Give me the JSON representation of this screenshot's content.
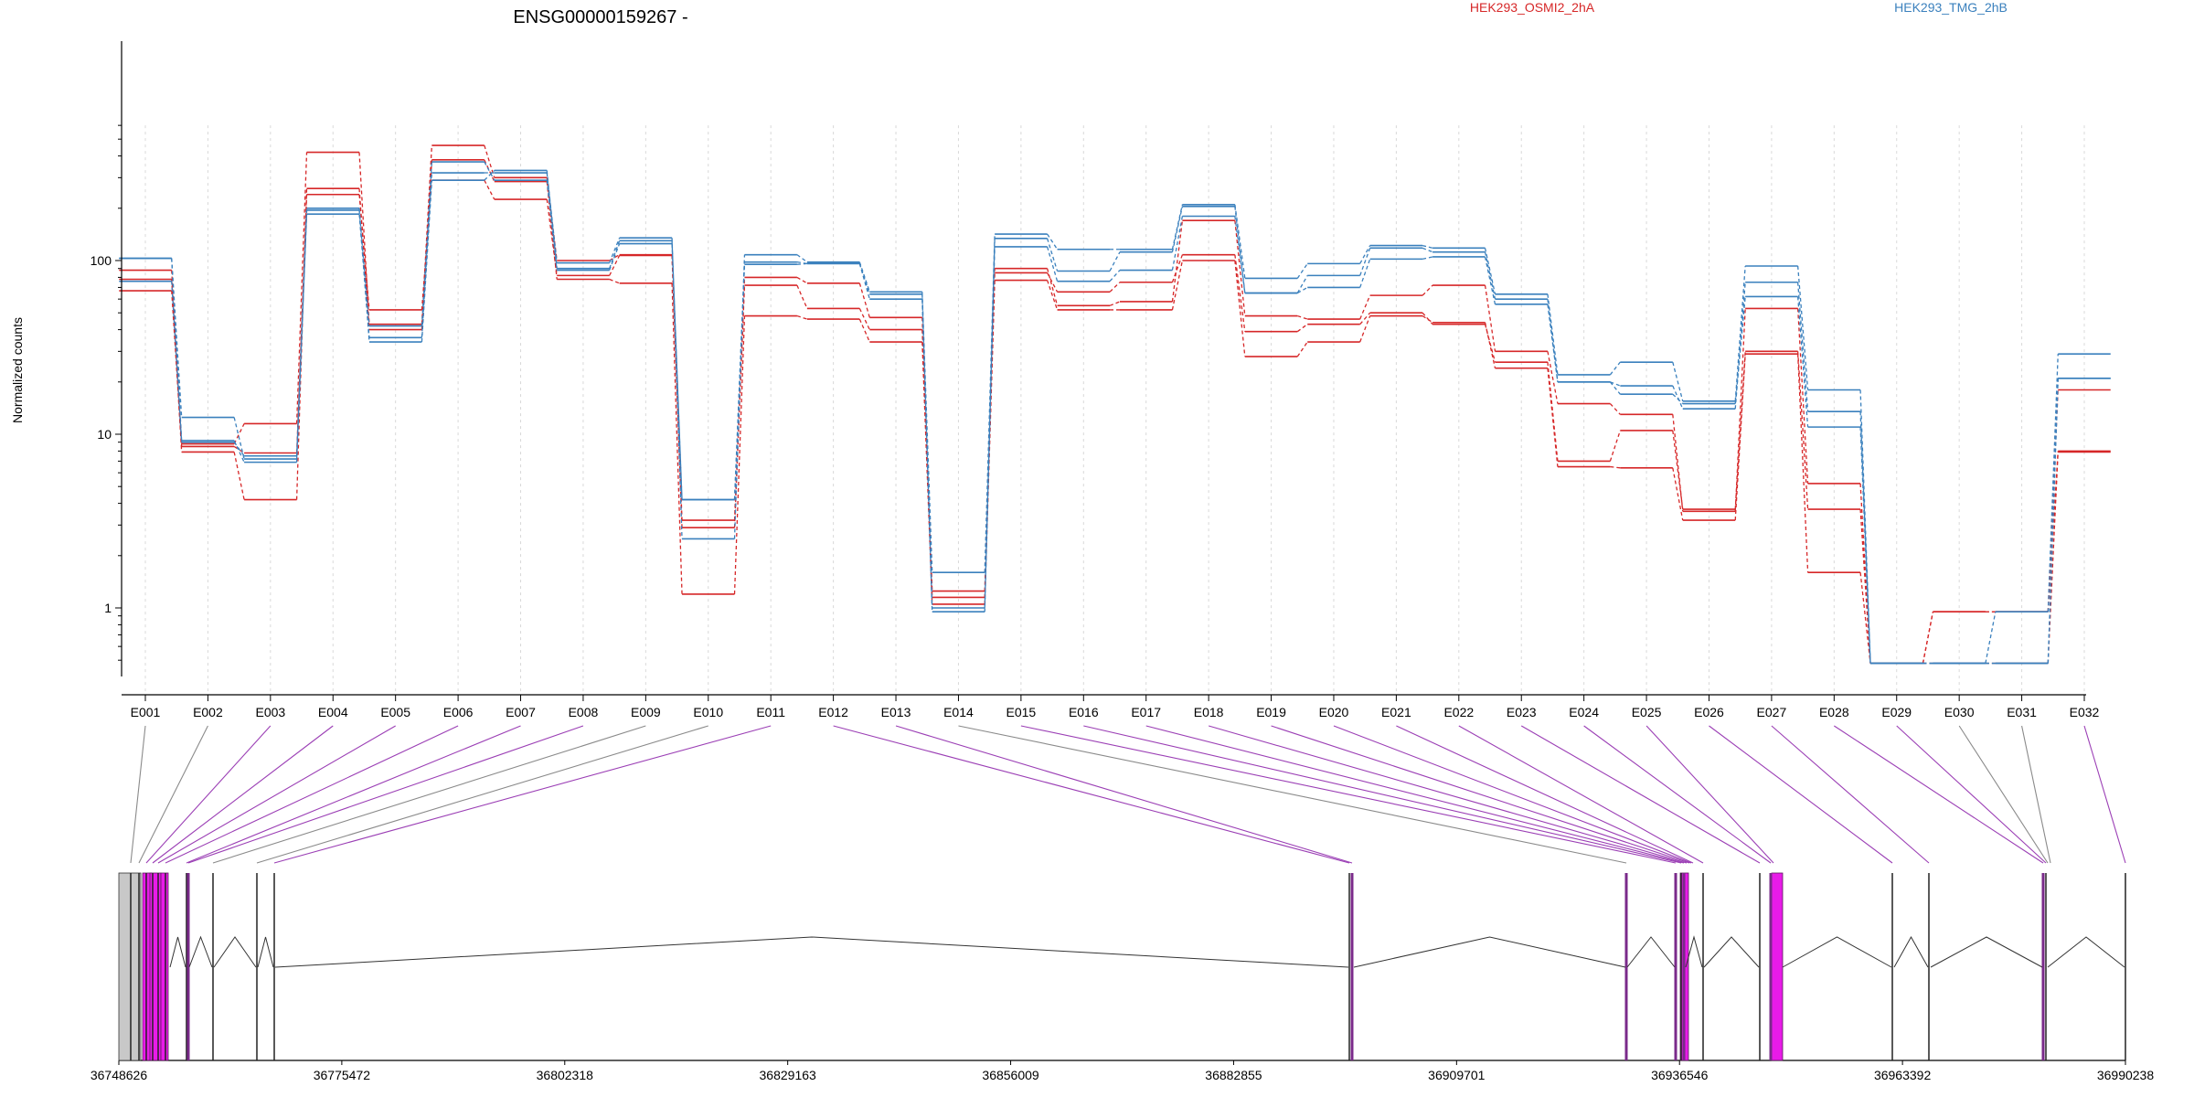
{
  "colors": {
    "group1": "#d62728",
    "group2": "#3a80bd",
    "spliced_line": "#9b3fb5",
    "unspliced_line": "#8a8a8a",
    "exon_magenta": "#e81be8",
    "exon_gray": "#c8c8c8",
    "axis": "#000000"
  },
  "chart_data": {
    "type": "line",
    "title": "ENSG00000159267 -",
    "ylabel": "Normalized counts",
    "yscale": "log",
    "ylim": [
      0.45,
      600
    ],
    "yticks": [
      1,
      10,
      100
    ],
    "ytick_labels": [
      "1",
      "10",
      "100"
    ],
    "grid": "vertical dashed at exons",
    "legend_placement": "top-right",
    "legend": [
      {
        "label": "HEK293_OSMI2_2hA",
        "color_key": "group1"
      },
      {
        "label": "HEK293_TMG_2hB",
        "color_key": "group2"
      }
    ],
    "categories": [
      "E001",
      "E002",
      "E003",
      "E004",
      "E005",
      "E006",
      "E007",
      "E008",
      "E009",
      "E010",
      "E011",
      "E012",
      "E013",
      "E014",
      "E015",
      "E016",
      "E017",
      "E018",
      "E019",
      "E020",
      "E021",
      "E022",
      "E023",
      "E024",
      "E025",
      "E026",
      "E027",
      "E028",
      "E029",
      "E030",
      "E031",
      "E032"
    ],
    "series": [
      {
        "group": "group1",
        "values": [
          88,
          8.8,
          11.5,
          420,
          43,
          460,
          300,
          100,
          108,
          3.2,
          80,
          74,
          47,
          1.25,
          90,
          55,
          58,
          170,
          48,
          46,
          63,
          72,
          30,
          15,
          13,
          3.6,
          53,
          5.2,
          0.48,
          0.95,
          0.95,
          18
        ]
      },
      {
        "group": "group1",
        "values": [
          78,
          7.9,
          4.2,
          260,
          40,
          380,
          285,
          78,
          74,
          1.2,
          48,
          46,
          34,
          1.05,
          77,
          52,
          52,
          100,
          28,
          34,
          48,
          44,
          24,
          6.5,
          6.4,
          3.2,
          29,
          1.6,
          0.48,
          0.48,
          0.48,
          7.9
        ]
      },
      {
        "group": "group1",
        "values": [
          67,
          8.5,
          7.8,
          240,
          52,
          290,
          225,
          82,
          107,
          2.9,
          72,
          53,
          40,
          1.15,
          85,
          66,
          75,
          108,
          39,
          43,
          50,
          43,
          26,
          7.0,
          10.5,
          3.7,
          30,
          3.7,
          0.48,
          0.95,
          0.95,
          8.0
        ]
      },
      {
        "group": "group2",
        "values": [
          103,
          12.5,
          7.2,
          185,
          36,
          320,
          320,
          97,
          135,
          2.5,
          108,
          98,
          66,
          1.6,
          142,
          116,
          116,
          210,
          79,
          96,
          122,
          118,
          64,
          22,
          26,
          15.5,
          93,
          18,
          0.48,
          0.48,
          0.95,
          29
        ]
      },
      {
        "group": "group2",
        "values": [
          103,
          9.2,
          6.9,
          200,
          34,
          290,
          330,
          90,
          130,
          4.2,
          98,
          96,
          60,
          0.95,
          120,
          76,
          88,
          180,
          65,
          70,
          102,
          105,
          56,
          20,
          17,
          15,
          62,
          11,
          0.48,
          0.48,
          0.48,
          21
        ]
      },
      {
        "group": "group2",
        "values": [
          76,
          9.0,
          7.5,
          195,
          42,
          370,
          290,
          88,
          125,
          4.2,
          95,
          96,
          64,
          1.0,
          134,
          87,
          112,
          205,
          65,
          82,
          118,
          112,
          60,
          20,
          19,
          14,
          75,
          13.5,
          0.48,
          0.48,
          0.48,
          21
        ]
      }
    ],
    "gene_model": {
      "coordinate_labels": [
        "36748626",
        "36775472",
        "36802318",
        "36829163",
        "36856009",
        "36882855",
        "36909701",
        "36936546",
        "36963392",
        "36990238"
      ],
      "exon_link_colors": [
        "unspliced",
        "unspliced",
        "spliced",
        "spliced",
        "spliced",
        "spliced",
        "spliced",
        "spliced",
        "unspliced",
        "unspliced",
        "spliced",
        "spliced",
        "spliced",
        "unspliced",
        "spliced",
        "spliced",
        "spliced",
        "spliced",
        "spliced",
        "spliced",
        "spliced",
        "spliced",
        "spliced",
        "spliced",
        "spliced",
        "spliced",
        "spliced",
        "spliced",
        "spliced",
        "unspliced",
        "unspliced",
        "spliced"
      ]
    }
  }
}
